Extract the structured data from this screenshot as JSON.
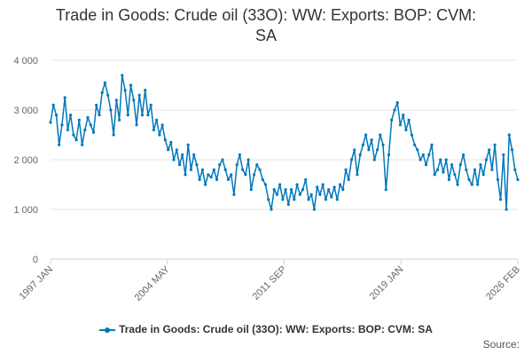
{
  "title_lines": [
    "Trade in Goods: Crude oil (33O): WW: Exports: BOP: CVM:",
    "SA"
  ],
  "source_label": "Source:",
  "colors": {
    "series": "#0077bb",
    "grid": "#e6e6e6",
    "axis": "#ccd6eb",
    "text": "#666666"
  },
  "chart_data": {
    "type": "line",
    "title": "Trade in Goods: Crude oil (33O): WW: Exports: BOP: CVM: SA",
    "xlabel": "",
    "ylabel": "",
    "x_range": [
      "1997 JAN",
      "2026 FEB"
    ],
    "x_tick_labels": [
      "1997 JAN",
      "2004 MAY",
      "2011 SEP",
      "2019 JAN",
      "2026 FEB"
    ],
    "y_tick_labels": [
      "0",
      "1 000",
      "2 000",
      "3 000",
      "4 000"
    ],
    "ylim": [
      0,
      4000
    ],
    "grid": true,
    "legend_position": "bottom",
    "series": [
      {
        "name": "Trade in Goods: Crude oil (33O): WW: Exports: BOP: CVM: SA",
        "sampling": "every 2 months from 1997 JAN (approximate readings)",
        "values": [
          2750,
          3100,
          2900,
          2300,
          2700,
          3250,
          2600,
          2900,
          2500,
          2400,
          2800,
          2300,
          2600,
          2850,
          2700,
          2550,
          3100,
          2900,
          3350,
          3550,
          3300,
          3000,
          2500,
          3200,
          2800,
          3700,
          3400,
          2900,
          3500,
          3200,
          2700,
          3300,
          2900,
          3400,
          2900,
          3100,
          2600,
          2800,
          2500,
          2700,
          2400,
          2200,
          2350,
          2000,
          2200,
          1900,
          2100,
          1700,
          2300,
          1800,
          2100,
          1900,
          1600,
          1800,
          1500,
          1700,
          1650,
          1800,
          1600,
          1900,
          2000,
          1800,
          1600,
          1700,
          1300,
          1900,
          2100,
          1800,
          1700,
          2000,
          1400,
          1700,
          1900,
          1800,
          1600,
          1500,
          1200,
          1000,
          1400,
          1300,
          1500,
          1200,
          1400,
          1100,
          1400,
          1200,
          1500,
          1300,
          1400,
          1600,
          1200,
          1300,
          1000,
          1450,
          1300,
          1500,
          1200,
          1400,
          1250,
          1450,
          1200,
          1500,
          1400,
          1800,
          1600,
          2000,
          2200,
          1700,
          2100,
          2300,
          2500,
          2200,
          2400,
          2000,
          2200,
          2500,
          2300,
          1400,
          2100,
          2800,
          3000,
          3150,
          2700,
          2900,
          2600,
          2800,
          2500,
          2300,
          2200,
          2000,
          2100,
          1900,
          2100,
          2300,
          1700,
          1800,
          2000,
          1750,
          2000,
          1600,
          1900,
          1700,
          1500,
          1900,
          2100,
          1800,
          1600,
          1500,
          1800,
          1500,
          1900,
          1700,
          2000,
          2200,
          1800,
          2300,
          1600,
          1200,
          2100,
          1000,
          2500,
          2200,
          1800,
          1600
        ]
      }
    ]
  }
}
